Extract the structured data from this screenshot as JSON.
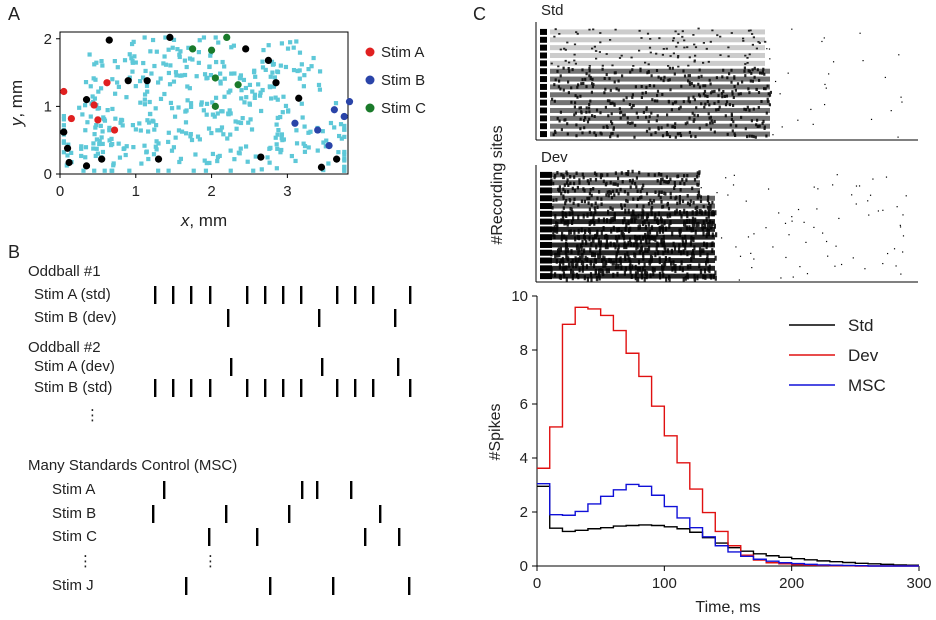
{
  "panel_labels": {
    "a": "A",
    "b": "B",
    "c": "C"
  },
  "panelA": {
    "xlabel_var": "x",
    "xlabel_unit": ", mm",
    "ylabel_var": "y",
    "ylabel_unit": ", mm",
    "xticks": [
      0,
      1,
      2,
      3
    ],
    "yticks": [
      0,
      1,
      2
    ],
    "xlim": [
      0,
      3.8
    ],
    "ylim": [
      0,
      2.1
    ],
    "legend": [
      {
        "label": "Stim A",
        "color": "#e02020"
      },
      {
        "label": "Stim B",
        "color": "#2a44a8"
      },
      {
        "label": "Stim C",
        "color": "#1a7a2a"
      }
    ],
    "background_color": "#5ec8d8",
    "sites": [
      {
        "x": 0.05,
        "y": 1.22,
        "c": "A"
      },
      {
        "x": 0.15,
        "y": 0.82,
        "c": "A"
      },
      {
        "x": 0.45,
        "y": 1.02,
        "c": "A"
      },
      {
        "x": 0.5,
        "y": 0.8,
        "c": "A"
      },
      {
        "x": 0.62,
        "y": 1.35,
        "c": "A"
      },
      {
        "x": 0.72,
        "y": 0.65,
        "c": "A"
      },
      {
        "x": 3.1,
        "y": 0.75,
        "c": "B"
      },
      {
        "x": 3.4,
        "y": 0.65,
        "c": "B"
      },
      {
        "x": 3.55,
        "y": 0.42,
        "c": "B"
      },
      {
        "x": 3.62,
        "y": 0.95,
        "c": "B"
      },
      {
        "x": 3.75,
        "y": 0.85,
        "c": "B"
      },
      {
        "x": 3.82,
        "y": 1.07,
        "c": "B"
      },
      {
        "x": 1.75,
        "y": 1.85,
        "c": "C"
      },
      {
        "x": 2.0,
        "y": 1.83,
        "c": "C"
      },
      {
        "x": 2.2,
        "y": 2.02,
        "c": "C"
      },
      {
        "x": 2.05,
        "y": 1.42,
        "c": "C"
      },
      {
        "x": 2.05,
        "y": 1.0,
        "c": "C"
      },
      {
        "x": 2.35,
        "y": 1.32,
        "c": "C"
      },
      {
        "x": 0.05,
        "y": 0.62,
        "c": "K"
      },
      {
        "x": 0.1,
        "y": 0.38,
        "c": "K"
      },
      {
        "x": 0.12,
        "y": 0.17,
        "c": "K"
      },
      {
        "x": 0.35,
        "y": 0.12,
        "c": "K"
      },
      {
        "x": 0.55,
        "y": 0.22,
        "c": "K"
      },
      {
        "x": 0.35,
        "y": 1.1,
        "c": "K"
      },
      {
        "x": 0.65,
        "y": 1.98,
        "c": "K"
      },
      {
        "x": 0.9,
        "y": 1.38,
        "c": "K"
      },
      {
        "x": 1.15,
        "y": 1.38,
        "c": "K"
      },
      {
        "x": 1.3,
        "y": 0.22,
        "c": "K"
      },
      {
        "x": 1.45,
        "y": 2.02,
        "c": "K"
      },
      {
        "x": 2.45,
        "y": 1.85,
        "c": "K"
      },
      {
        "x": 2.75,
        "y": 1.68,
        "c": "K"
      },
      {
        "x": 2.85,
        "y": 1.35,
        "c": "K"
      },
      {
        "x": 3.15,
        "y": 1.12,
        "c": "K"
      },
      {
        "x": 3.45,
        "y": 0.1,
        "c": "K"
      },
      {
        "x": 3.65,
        "y": 0.22,
        "c": "K"
      },
      {
        "x": 2.65,
        "y": 0.25,
        "c": "K"
      }
    ]
  },
  "panelB": {
    "sections": [
      {
        "title": "Oddball #1",
        "rows": [
          {
            "label": "Stim A (std)",
            "ticks": [
              0,
              18,
              36,
              55,
              92,
              110,
              128,
              146,
              182,
              200,
              218,
              255
            ]
          },
          {
            "label": "Stim B (dev)",
            "ticks": [
              73,
              164,
              240
            ]
          }
        ]
      },
      {
        "title": "Oddball #2",
        "rows": [
          {
            "label": "Stim A (dev)",
            "ticks": [
              76,
              167,
              243
            ]
          },
          {
            "label": "Stim B (std)",
            "ticks": [
              0,
              18,
              36,
              55,
              92,
              110,
              128,
              146,
              182,
              200,
              218,
              255
            ]
          }
        ]
      },
      {
        "title": "Many Standards Control (MSC)",
        "rows": [
          {
            "label": "Stim A",
            "ticks": [
              11,
              149,
              164,
              198
            ]
          },
          {
            "label": "Stim B",
            "ticks": [
              0,
              73,
              136,
              227
            ]
          },
          {
            "label": "Stim C",
            "ticks": [
              56,
              104,
              212,
              246
            ]
          },
          {
            "label": "Stim J",
            "ticks": [
              33,
              117,
              180,
              256
            ]
          }
        ]
      }
    ],
    "ellipsis": "⋮"
  },
  "panelC": {
    "raster_labels": {
      "std": "Std",
      "dev": "Dev"
    },
    "raster_ylabel": "#Recording sites",
    "chart_data": {
      "type": "line",
      "title": "",
      "xlabel": "Time, ms",
      "ylabel": "#Spikes",
      "xlim": [
        0,
        300
      ],
      "ylim": [
        0,
        10
      ],
      "xticks": [
        0,
        100,
        200,
        300
      ],
      "yticks": [
        0,
        2,
        4,
        6,
        8,
        10
      ],
      "bin_edges": [
        0,
        10,
        20,
        30,
        40,
        50,
        60,
        70,
        80,
        90,
        100,
        110,
        120,
        130,
        140,
        150,
        160,
        170,
        180,
        190,
        200,
        210,
        220,
        230,
        240,
        250,
        260,
        270,
        280,
        290,
        300
      ],
      "series": [
        {
          "name": "Std",
          "color": "#000000",
          "values": [
            2.95,
            1.4,
            1.28,
            1.32,
            1.38,
            1.42,
            1.48,
            1.5,
            1.52,
            1.5,
            1.45,
            1.38,
            1.25,
            1.05,
            0.85,
            0.68,
            0.55,
            0.45,
            0.38,
            0.32,
            0.27,
            0.23,
            0.19,
            0.16,
            0.13,
            0.1,
            0.08,
            0.06,
            0.04,
            0.03
          ]
        },
        {
          "name": "Dev",
          "color": "#e01010",
          "values": [
            3.62,
            5.15,
            8.95,
            9.58,
            9.52,
            9.28,
            8.72,
            7.88,
            7.02,
            5.92,
            4.82,
            3.82,
            2.85,
            1.98,
            1.28,
            0.75,
            0.4,
            0.22,
            0.12,
            0.08,
            0.05,
            0.03,
            0.02,
            0.01,
            0.01,
            0.0,
            0.0,
            0.0,
            0.0,
            0.0
          ]
        },
        {
          "name": "MSC",
          "color": "#1010d8",
          "values": [
            3.05,
            1.9,
            1.88,
            2.02,
            2.3,
            2.58,
            2.82,
            3.02,
            2.95,
            2.62,
            2.2,
            1.78,
            1.42,
            1.08,
            0.75,
            0.52,
            0.36,
            0.25,
            0.18,
            0.12,
            0.09,
            0.06,
            0.04,
            0.03,
            0.02,
            0.01,
            0.0,
            0.0,
            0.0,
            0.0
          ]
        }
      ],
      "legend_position": "top-right"
    }
  }
}
